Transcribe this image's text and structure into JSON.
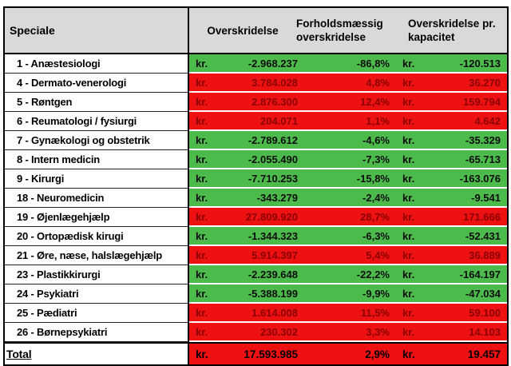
{
  "chart_data": {
    "type": "table",
    "columns": [
      "Speciale",
      "Overskridelse",
      "Forholdsmæssig overskridelse",
      "Overskridelse pr. kapacitet"
    ],
    "currency": "kr.",
    "rows": [
      {
        "label": "1 - Anæstesiologi",
        "overskridelse": "-2.968.237",
        "pct": "-86,8%",
        "pr_kapacitet": "-120.513",
        "status": "under"
      },
      {
        "label": "4 - Dermato-venerologi",
        "overskridelse": "3.784.028",
        "pct": "4,8%",
        "pr_kapacitet": "36.270",
        "status": "over"
      },
      {
        "label": "5 - Røntgen",
        "overskridelse": "2.876.300",
        "pct": "12,4%",
        "pr_kapacitet": "159.794",
        "status": "over"
      },
      {
        "label": "6 - Reumatologi / fysiurgi",
        "overskridelse": "204.071",
        "pct": "1,1%",
        "pr_kapacitet": "4.642",
        "status": "over"
      },
      {
        "label": "7 - Gynækologi og obstetrik",
        "overskridelse": "-2.789.612",
        "pct": "-4,6%",
        "pr_kapacitet": "-35.329",
        "status": "under"
      },
      {
        "label": "8 - Intern medicin",
        "overskridelse": "-2.055.490",
        "pct": "-7,3%",
        "pr_kapacitet": "-65.713",
        "status": "under"
      },
      {
        "label": "9 - Kirurgi",
        "overskridelse": "-7.710.253",
        "pct": "-15,8%",
        "pr_kapacitet": "-163.076",
        "status": "under"
      },
      {
        "label": "18 - Neuromedicin",
        "overskridelse": "-343.279",
        "pct": "-2,4%",
        "pr_kapacitet": "-9.541",
        "status": "under"
      },
      {
        "label": "19 - Øjenlægehjælp",
        "overskridelse": "27.809.920",
        "pct": "28,7%",
        "pr_kapacitet": "171.666",
        "status": "over"
      },
      {
        "label": "20 - Ortopædisk kirugi",
        "overskridelse": "-1.344.323",
        "pct": "-6,3%",
        "pr_kapacitet": "-52.431",
        "status": "under"
      },
      {
        "label": "21 - Øre, næse, halslægehjælp",
        "overskridelse": "5.914.397",
        "pct": "5,4%",
        "pr_kapacitet": "36.889",
        "status": "over"
      },
      {
        "label": "23 - Plastikkirurgi",
        "overskridelse": "-2.239.648",
        "pct": "-22,2%",
        "pr_kapacitet": "-164.197",
        "status": "under"
      },
      {
        "label": "24 - Psykiatri",
        "overskridelse": "-5.388.199",
        "pct": "-9,9%",
        "pr_kapacitet": "-47.034",
        "status": "under"
      },
      {
        "label": "25 - Pædiatri",
        "overskridelse": "1.614.008",
        "pct": "11,5%",
        "pr_kapacitet": "59.100",
        "status": "over"
      },
      {
        "label": "26 - Børnepsykiatri",
        "overskridelse": "230.302",
        "pct": "3,3%",
        "pr_kapacitet": "14.103",
        "status": "over"
      }
    ],
    "total": {
      "label": "Total",
      "overskridelse": "17.593.985",
      "pct": "2,9%",
      "pr_kapacitet": "19.457",
      "status": "over"
    },
    "colors": {
      "under_bg": "#4cbb4c",
      "over_bg": "#ee1111",
      "over_text": "#8b0000",
      "under_text": "#0d0d0d",
      "header_bg": "#d9d9d9",
      "border": "#000000"
    },
    "legend": "green = under capacity (negative overskridelse), red = over"
  }
}
